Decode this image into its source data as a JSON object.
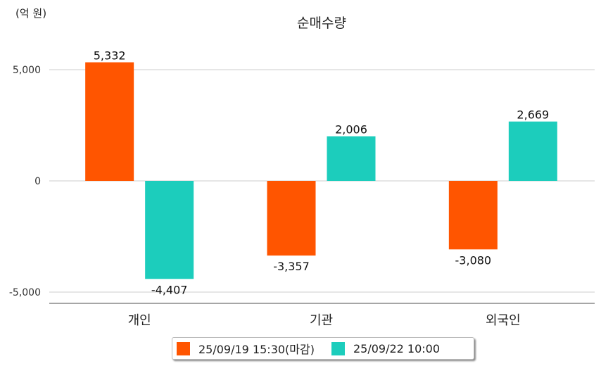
{
  "chart_data": {
    "type": "bar",
    "title": "순매수량",
    "unit_label": "(억 원)",
    "categories": [
      "개인",
      "기관",
      "외국인"
    ],
    "series": [
      {
        "name": "25/09/19 15:30(마감)",
        "color": "#ff5500",
        "values": [
          5332,
          -3357,
          -3080
        ],
        "labels": [
          "5,332",
          "-3,357",
          "-3,080"
        ]
      },
      {
        "name": "25/09/22 10:00",
        "color": "#1ccdbc",
        "values": [
          -4407,
          2006,
          2669
        ],
        "labels": [
          "-4,407",
          "2,006",
          "2,669"
        ]
      }
    ],
    "yticks": [
      5000,
      0,
      -5000
    ],
    "ytick_labels": [
      "5,000",
      "0",
      "-5,000"
    ],
    "ylim": [
      -5500,
      6000
    ],
    "grid": true,
    "legend_position": "bottom"
  }
}
